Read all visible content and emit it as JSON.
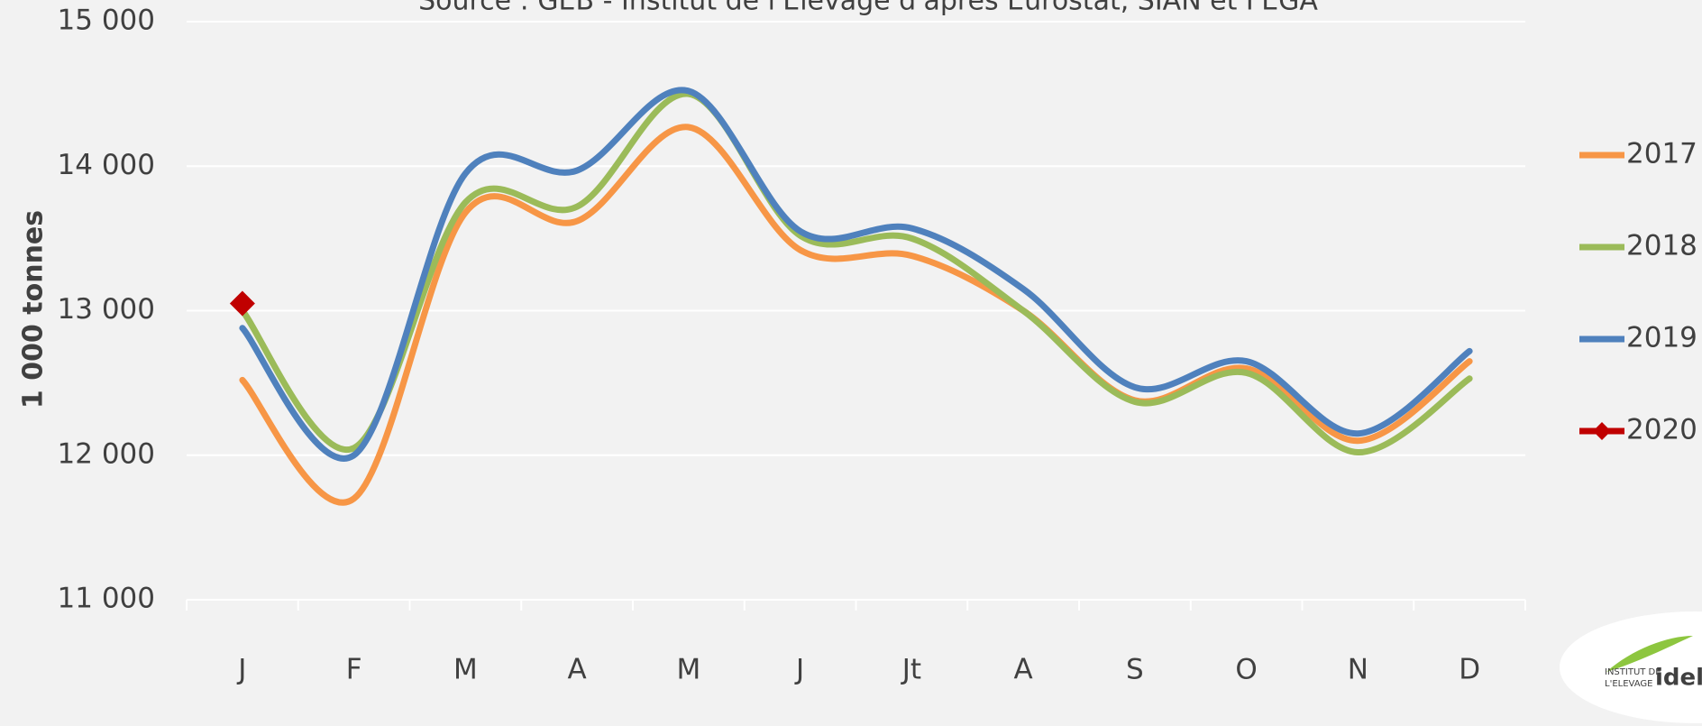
{
  "chart_data": {
    "type": "line",
    "title": "Source : GEB - Institut de l'Elevage d'après Eurostat, SIAN et FEGA",
    "y_label": "1 000  tonnes",
    "categories": [
      "J",
      "F",
      "M",
      "A",
      "M",
      "J",
      "Jt",
      "A",
      "S",
      "O",
      "N",
      "D"
    ],
    "series": [
      {
        "name": "2017",
        "color": "#f79646",
        "values": [
          12520,
          11700,
          13680,
          13620,
          14270,
          13420,
          13380,
          13000,
          12380,
          12600,
          12100,
          12650
        ]
      },
      {
        "name": "2018",
        "color": "#9bbb59",
        "values": [
          13000,
          12050,
          13750,
          13720,
          14500,
          13520,
          13500,
          13000,
          12370,
          12570,
          12020,
          12530
        ]
      },
      {
        "name": "2019",
        "color": "#4f81bd",
        "values": [
          12880,
          12000,
          13950,
          13970,
          14520,
          13550,
          13570,
          13150,
          12470,
          12650,
          12150,
          12720
        ]
      },
      {
        "name": "2020",
        "color": "#c00000",
        "marker": "diamond",
        "values": [
          13050,
          null,
          null,
          null,
          null,
          null,
          null,
          null,
          null,
          null,
          null,
          null
        ]
      }
    ],
    "ylim": [
      11000,
      15000
    ],
    "yticks": [
      {
        "value": 11000,
        "label": "11 000"
      },
      {
        "value": 12000,
        "label": "12 000"
      },
      {
        "value": 13000,
        "label": "13 000"
      },
      {
        "value": 14000,
        "label": "14 000"
      },
      {
        "value": 15000,
        "label": "15 000"
      }
    ],
    "grid": true,
    "legend": "right",
    "smooth": true
  },
  "logo": {
    "line1": "INSTITUT DE",
    "line2": "L'ELEVAGE",
    "brand": "idele"
  }
}
